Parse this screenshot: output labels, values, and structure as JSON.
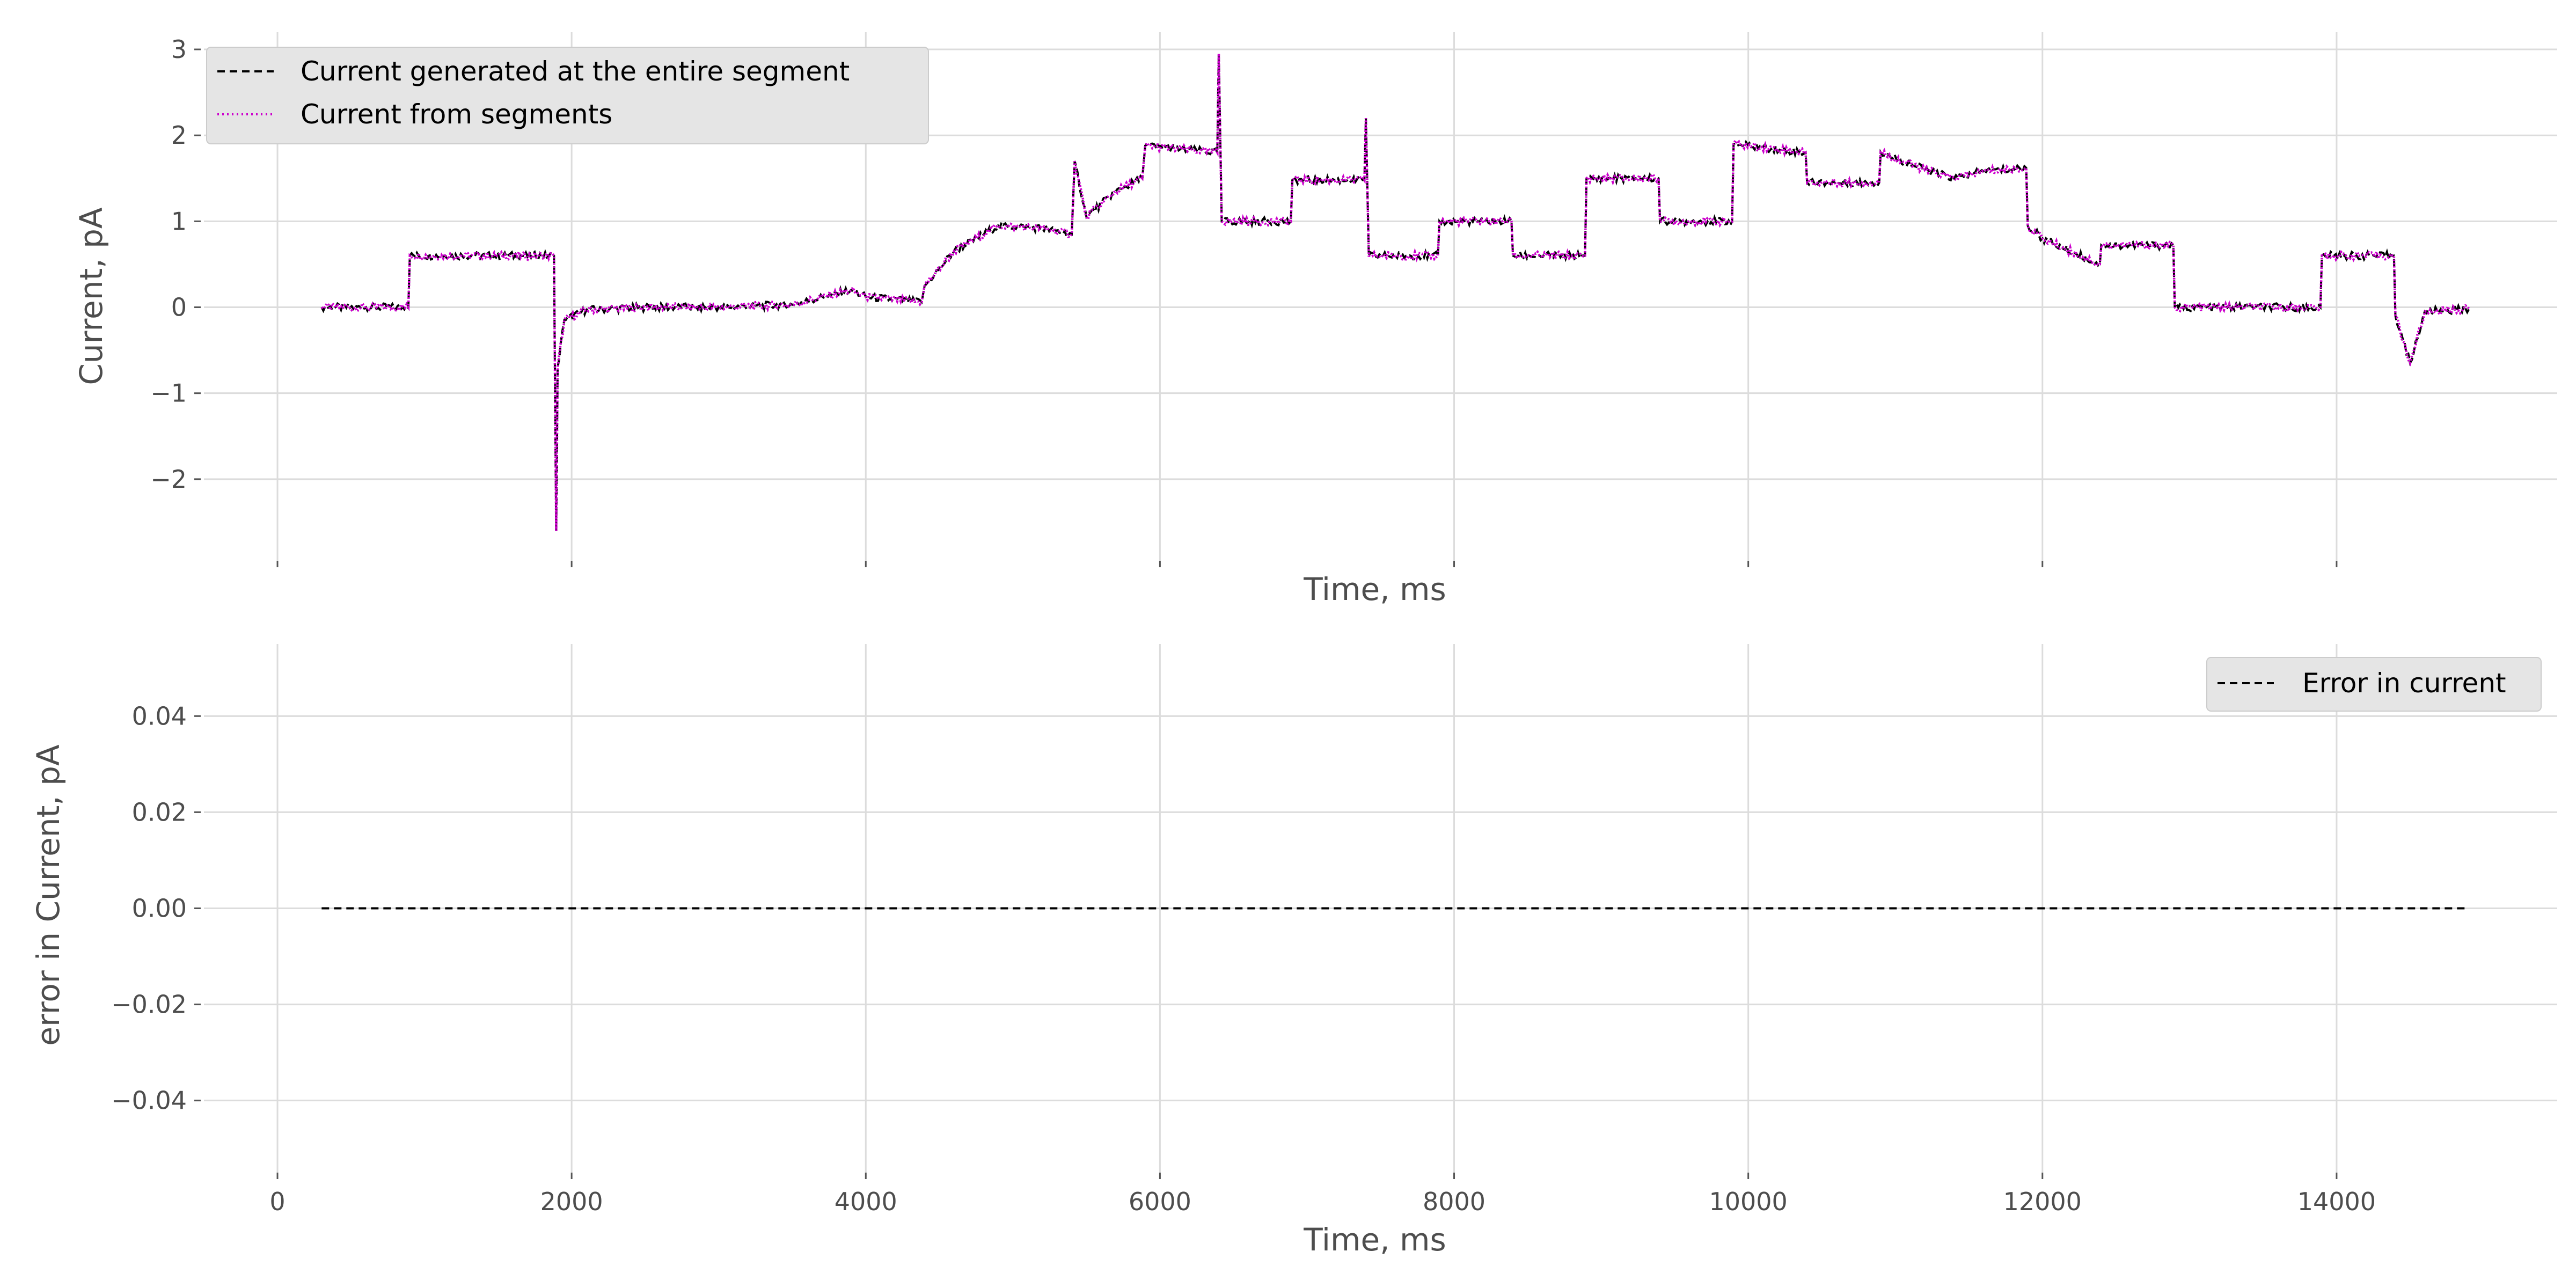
{
  "chart_data": [
    {
      "type": "line",
      "xlabel": "Time, ms",
      "ylabel": "Current, pA",
      "xlim": [
        -500,
        15500
      ],
      "ylim": [
        -2.95,
        3.2
      ],
      "x_ticks": [
        0,
        2000,
        4000,
        6000,
        8000,
        10000,
        12000,
        14000
      ],
      "x_tick_labels_shown": false,
      "y_ticks": [
        -2,
        -1,
        0,
        1,
        2,
        3
      ],
      "y_tick_labels": [
        "−2",
        "−1",
        "0",
        "1",
        "2",
        "3"
      ],
      "grid": true,
      "legend_position": "top-left",
      "series": [
        {
          "name": "Current generated at the entire segment",
          "style": "dashed",
          "color": "#000000"
        },
        {
          "name": "Current from segments",
          "style": "dotted",
          "color": "#cc00cc"
        }
      ],
      "x": [
        300,
        890,
        900,
        1880,
        1895,
        1905,
        1950,
        2100,
        2500,
        3000,
        3500,
        3900,
        4000,
        4380,
        4400,
        4600,
        4900,
        5200,
        5400,
        5420,
        5500,
        5700,
        5880,
        5900,
        6390,
        6400,
        6420,
        6890,
        6900,
        7390,
        7400,
        7420,
        7890,
        7900,
        8390,
        8400,
        8890,
        8900,
        9390,
        9400,
        9890,
        9900,
        10390,
        10400,
        10890,
        10900,
        11200,
        11400,
        11600,
        11890,
        11900,
        12000,
        12390,
        12400,
        12890,
        12900,
        13890,
        13900,
        14390,
        14400,
        14500,
        14600,
        14900
      ],
      "y": [
        0.0,
        0.0,
        0.6,
        0.6,
        -2.6,
        -0.7,
        -0.15,
        -0.03,
        0.0,
        0.0,
        0.03,
        0.2,
        0.12,
        0.06,
        0.25,
        0.65,
        0.95,
        0.92,
        0.85,
        1.7,
        1.05,
        1.35,
        1.5,
        1.88,
        1.8,
        2.95,
        1.0,
        1.0,
        1.48,
        1.48,
        2.2,
        0.6,
        0.6,
        1.0,
        1.0,
        0.6,
        0.6,
        1.5,
        1.5,
        1.0,
        1.0,
        1.9,
        1.8,
        1.45,
        1.45,
        1.8,
        1.6,
        1.5,
        1.58,
        1.62,
        0.95,
        0.8,
        0.5,
        0.72,
        0.72,
        0.0,
        0.0,
        0.6,
        0.6,
        -0.1,
        -0.65,
        -0.05,
        -0.02
      ]
    },
    {
      "type": "line",
      "xlabel": "Time, ms",
      "ylabel": "error in Current, pA",
      "xlim": [
        -500,
        15500
      ],
      "ylim": [
        -0.055,
        0.055
      ],
      "x_ticks": [
        0,
        2000,
        4000,
        6000,
        8000,
        10000,
        12000,
        14000
      ],
      "x_tick_labels": [
        "0",
        "2000",
        "4000",
        "6000",
        "8000",
        "10000",
        "12000",
        "14000"
      ],
      "y_ticks": [
        -0.04,
        -0.02,
        0.0,
        0.02,
        0.04
      ],
      "y_tick_labels": [
        "−0.04",
        "−0.02",
        "0.00",
        "0.02",
        "0.04"
      ],
      "grid": true,
      "legend_position": "top-right",
      "series": [
        {
          "name": "Error in current",
          "style": "dashed",
          "color": "#000000"
        }
      ],
      "x": [
        300,
        14900
      ],
      "y": [
        0.0,
        0.0
      ]
    }
  ]
}
